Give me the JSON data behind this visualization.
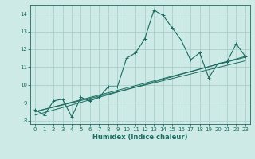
{
  "xlabel": "Humidex (Indice chaleur)",
  "ylabel": "",
  "background_color": "#ceeae6",
  "grid_color": "#aacfca",
  "line_color": "#1a6b60",
  "xlim": [
    -0.5,
    23.5
  ],
  "ylim": [
    7.8,
    14.5
  ],
  "xticks": [
    0,
    1,
    2,
    3,
    4,
    5,
    6,
    7,
    8,
    9,
    10,
    11,
    12,
    13,
    14,
    15,
    16,
    17,
    18,
    19,
    20,
    21,
    22,
    23
  ],
  "yticks": [
    8,
    9,
    10,
    11,
    12,
    13,
    14
  ],
  "series1_x": [
    0,
    1,
    2,
    3,
    4,
    5,
    6,
    7,
    8,
    9,
    10,
    11,
    12,
    13,
    14,
    15,
    16,
    17,
    18,
    19,
    20,
    21,
    22,
    23
  ],
  "series1_y": [
    8.6,
    8.3,
    9.1,
    9.2,
    8.2,
    9.3,
    9.1,
    9.3,
    9.9,
    9.9,
    11.5,
    11.8,
    12.6,
    14.2,
    13.9,
    13.2,
    12.5,
    11.4,
    11.8,
    10.4,
    11.2,
    11.3,
    12.3,
    11.6
  ],
  "series2_x": [
    0,
    23
  ],
  "series2_y": [
    8.5,
    11.55
  ],
  "series3_x": [
    0,
    23
  ],
  "series3_y": [
    8.5,
    11.35
  ],
  "series4_x": [
    0,
    23
  ],
  "series4_y": [
    8.3,
    11.6
  ]
}
